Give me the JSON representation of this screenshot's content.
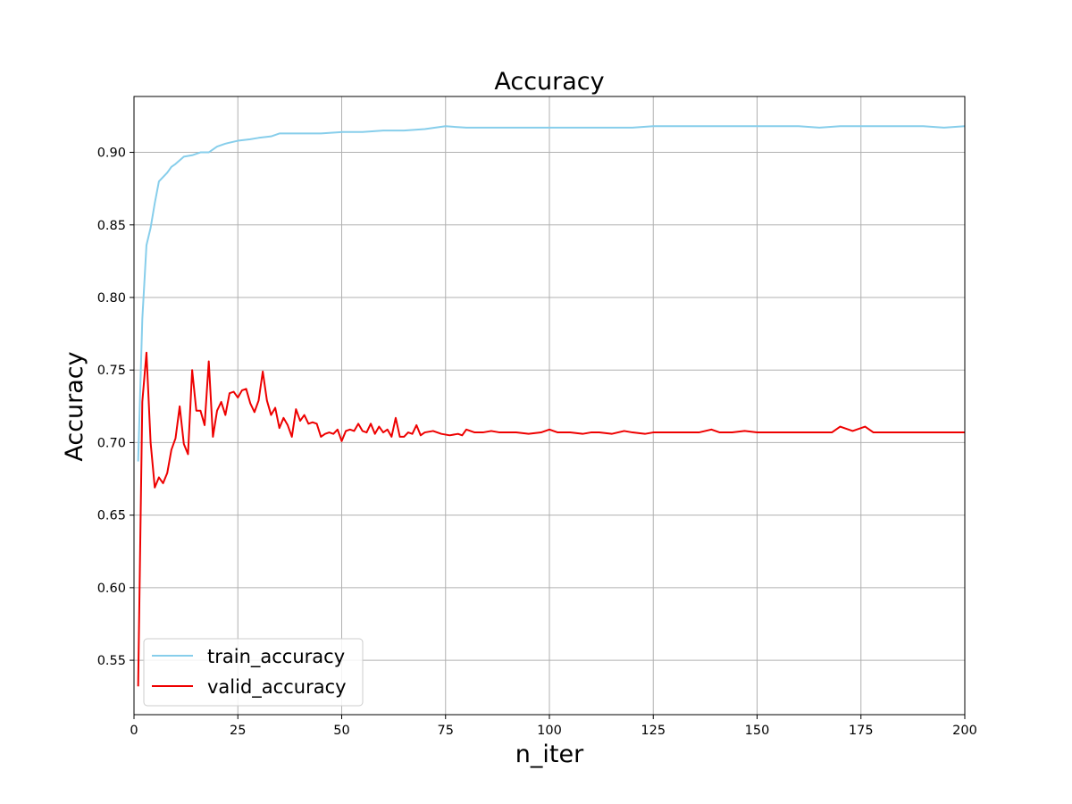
{
  "chart_data": {
    "type": "line",
    "title": "Accuracy",
    "xlabel": "n_iter",
    "ylabel": "Accuracy",
    "xlim": [
      0,
      200
    ],
    "ylim": [
      0.5125,
      0.9385
    ],
    "grid": true,
    "legend_position": "bottom-left",
    "xticks": [
      0,
      25,
      50,
      75,
      100,
      125,
      150,
      175,
      200
    ],
    "xtick_labels": [
      "0",
      "25",
      "50",
      "75",
      "100",
      "125",
      "150",
      "175",
      "200"
    ],
    "yticks": [
      0.55,
      0.6,
      0.65,
      0.7,
      0.75,
      0.8,
      0.85,
      0.9
    ],
    "ytick_labels": [
      "0.55",
      "0.60",
      "0.65",
      "0.70",
      "0.75",
      "0.80",
      "0.85",
      "0.90"
    ],
    "series": [
      {
        "name": "train_accuracy",
        "color": "#87ceeb",
        "x": [
          1,
          2,
          3,
          4,
          5,
          6,
          7,
          8,
          9,
          10,
          12,
          14,
          16,
          18,
          20,
          22,
          25,
          28,
          30,
          33,
          35,
          40,
          45,
          50,
          55,
          60,
          65,
          70,
          75,
          80,
          85,
          90,
          95,
          100,
          105,
          110,
          115,
          120,
          125,
          130,
          135,
          140,
          145,
          150,
          155,
          160,
          165,
          170,
          175,
          180,
          185,
          190,
          195,
          200
        ],
        "values": [
          0.687,
          0.785,
          0.836,
          0.848,
          0.865,
          0.88,
          0.883,
          0.886,
          0.89,
          0.892,
          0.897,
          0.898,
          0.9,
          0.9,
          0.904,
          0.906,
          0.908,
          0.909,
          0.91,
          0.911,
          0.913,
          0.913,
          0.913,
          0.914,
          0.914,
          0.915,
          0.915,
          0.916,
          0.918,
          0.917,
          0.917,
          0.917,
          0.917,
          0.917,
          0.917,
          0.917,
          0.917,
          0.917,
          0.918,
          0.918,
          0.918,
          0.918,
          0.918,
          0.918,
          0.918,
          0.918,
          0.917,
          0.918,
          0.918,
          0.918,
          0.918,
          0.918,
          0.917,
          0.918
        ]
      },
      {
        "name": "valid_accuracy",
        "color": "#ee0000",
        "x": [
          1,
          2,
          3,
          4,
          5,
          6,
          7,
          8,
          9,
          10,
          11,
          12,
          13,
          14,
          15,
          16,
          17,
          18,
          19,
          20,
          21,
          22,
          23,
          24,
          25,
          26,
          27,
          28,
          29,
          30,
          31,
          32,
          33,
          34,
          35,
          36,
          37,
          38,
          39,
          40,
          41,
          42,
          43,
          44,
          45,
          46,
          47,
          48,
          49,
          50,
          51,
          52,
          53,
          54,
          55,
          56,
          57,
          58,
          59,
          60,
          61,
          62,
          63,
          64,
          65,
          66,
          67,
          68,
          69,
          70,
          72,
          74,
          76,
          78,
          79,
          80,
          82,
          84,
          86,
          88,
          90,
          92,
          95,
          98,
          100,
          102,
          105,
          108,
          110,
          112,
          115,
          118,
          120,
          123,
          125,
          128,
          130,
          133,
          136,
          139,
          141,
          144,
          147,
          150,
          153,
          156,
          159,
          162,
          165,
          168,
          170,
          173,
          176,
          178,
          181,
          184,
          187,
          190,
          193,
          196,
          200
        ],
        "values": [
          0.532,
          0.728,
          0.762,
          0.7,
          0.669,
          0.676,
          0.672,
          0.679,
          0.695,
          0.703,
          0.725,
          0.699,
          0.692,
          0.75,
          0.722,
          0.722,
          0.712,
          0.756,
          0.704,
          0.722,
          0.728,
          0.719,
          0.734,
          0.735,
          0.731,
          0.736,
          0.737,
          0.727,
          0.721,
          0.729,
          0.749,
          0.729,
          0.719,
          0.724,
          0.71,
          0.717,
          0.712,
          0.704,
          0.723,
          0.715,
          0.719,
          0.713,
          0.714,
          0.713,
          0.704,
          0.706,
          0.707,
          0.706,
          0.709,
          0.701,
          0.708,
          0.709,
          0.708,
          0.713,
          0.708,
          0.707,
          0.713,
          0.706,
          0.711,
          0.707,
          0.709,
          0.704,
          0.717,
          0.704,
          0.704,
          0.707,
          0.706,
          0.712,
          0.705,
          0.707,
          0.708,
          0.706,
          0.705,
          0.706,
          0.705,
          0.709,
          0.707,
          0.707,
          0.708,
          0.707,
          0.707,
          0.707,
          0.706,
          0.707,
          0.709,
          0.707,
          0.707,
          0.706,
          0.707,
          0.707,
          0.706,
          0.708,
          0.707,
          0.706,
          0.707,
          0.707,
          0.707,
          0.707,
          0.707,
          0.709,
          0.707,
          0.707,
          0.708,
          0.707,
          0.707,
          0.707,
          0.707,
          0.707,
          0.707,
          0.707,
          0.711,
          0.708,
          0.711,
          0.707,
          0.707,
          0.707,
          0.707,
          0.707,
          0.707,
          0.707,
          0.707
        ]
      }
    ]
  }
}
